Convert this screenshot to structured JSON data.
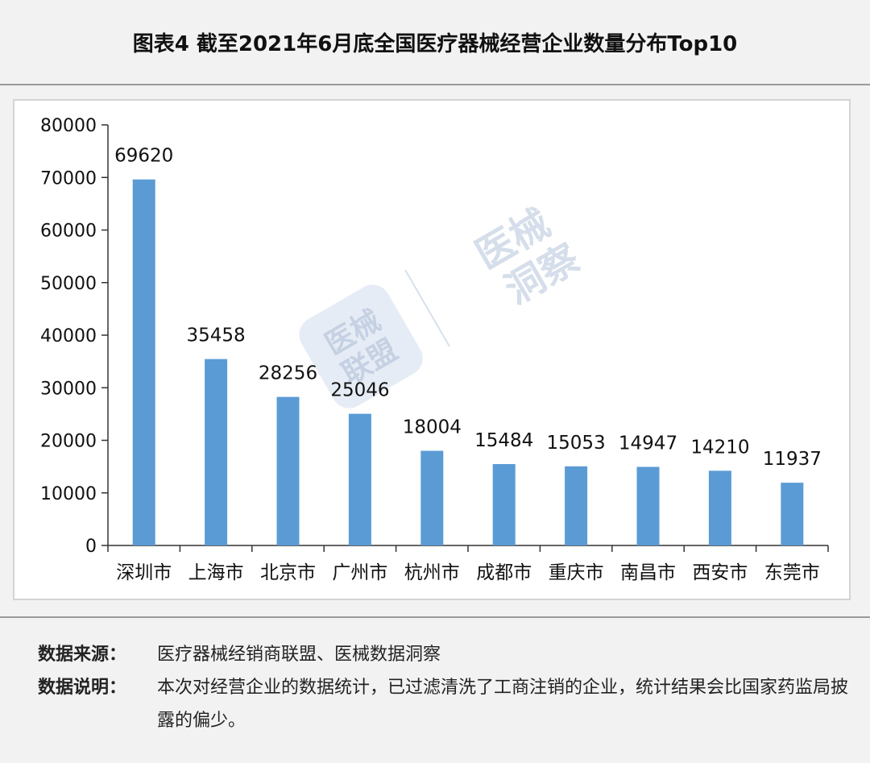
{
  "title": "图表4 截至2021年6月底全国医疗器械经营企业数量分布Top10",
  "chart_data": {
    "type": "bar",
    "categories": [
      "深圳市",
      "上海市",
      "北京市",
      "广州市",
      "杭州市",
      "成都市",
      "重庆市",
      "南昌市",
      "西安市",
      "东莞市"
    ],
    "values": [
      69620,
      35458,
      28256,
      25046,
      18004,
      15484,
      15053,
      14947,
      14210,
      11937
    ],
    "yticks": [
      "0",
      "10000",
      "20000",
      "30000",
      "40000",
      "50000",
      "60000",
      "70000",
      "80000"
    ],
    "ylim": [
      0,
      80000
    ],
    "bar_color": "#5b9bd5",
    "grid": false,
    "legend": "none"
  },
  "watermark": {
    "badge_line1": "医械",
    "badge_line2": "联盟",
    "text_line1": "医械",
    "text_line2": "洞察"
  },
  "footer": {
    "source_label": "数据来源：",
    "source_text": "医疗器械经销商联盟、医械数据洞察",
    "note_label": "数据说明：",
    "note_text": "本次对经营企业的数据统计，已过滤清洗了工商注销的企业，统计结果会比国家药监局披露的偏少。"
  }
}
